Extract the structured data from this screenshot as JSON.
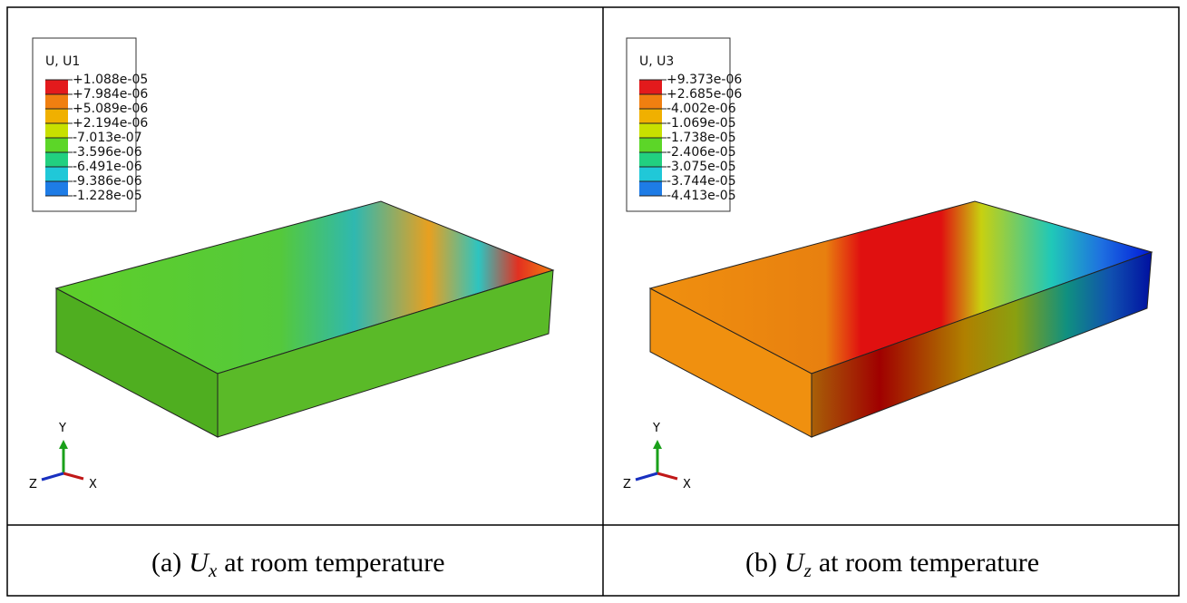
{
  "panels": [
    {
      "legend": {
        "title": "U, U1",
        "values": [
          "+1.088e-05",
          "+7.984e-06",
          "+5.089e-06",
          "+2.194e-06",
          "-7.013e-07",
          "-3.596e-06",
          "-6.491e-06",
          "-9.386e-06",
          "-1.228e-05"
        ]
      },
      "triad": {
        "y": "Y",
        "z": "Z",
        "x": "X"
      },
      "caption": {
        "label": "(a)",
        "symbol": "U",
        "subscript": "x",
        "text": "at room temperature"
      }
    },
    {
      "legend": {
        "title": "U, U3",
        "values": [
          "+9.373e-06",
          "+2.685e-06",
          "-4.002e-06",
          "-1.069e-05",
          "-1.738e-05",
          "-2.406e-05",
          "-3.075e-05",
          "-3.744e-05",
          "-4.413e-05"
        ]
      },
      "triad": {
        "y": "Y",
        "z": "Z",
        "x": "X"
      },
      "caption": {
        "label": "(b)",
        "symbol": "U",
        "subscript": "z",
        "text": "at room temperature"
      }
    }
  ]
}
